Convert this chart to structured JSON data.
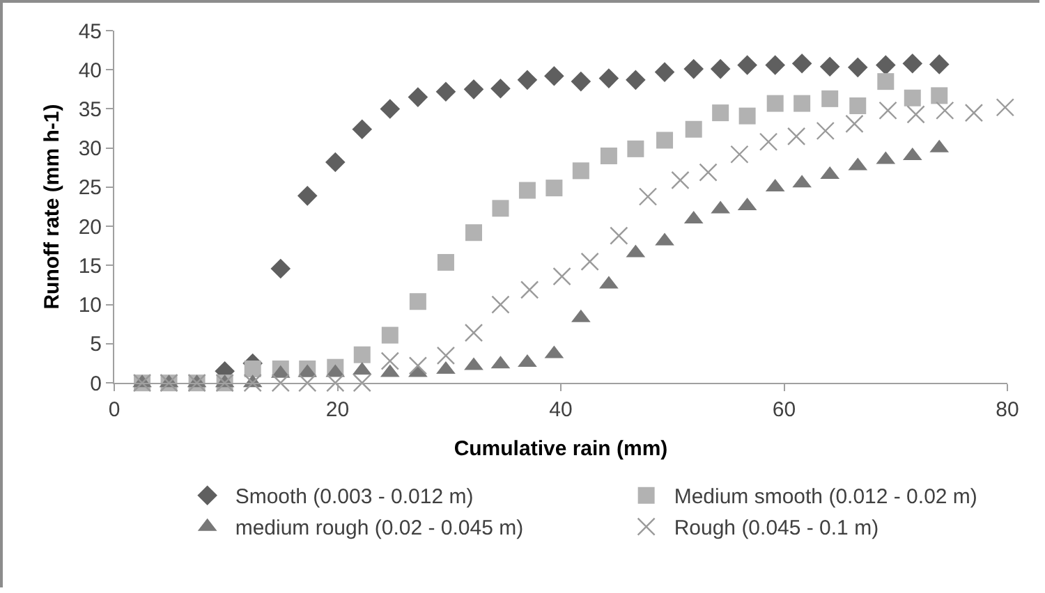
{
  "chart_data": {
    "type": "scatter",
    "xlabel": "Cumulative rain (mm)",
    "ylabel": "Runoff rate (mm h-1)",
    "xlim": [
      0,
      80
    ],
    "xticks": [
      0,
      20,
      40,
      60,
      80
    ],
    "ylim": [
      0,
      45
    ],
    "yticks": [
      0,
      5,
      10,
      15,
      20,
      25,
      30,
      35,
      40,
      45
    ],
    "grid": false,
    "legend": "bottom",
    "x": [
      2.5,
      4.9,
      7.4,
      9.9,
      12.4,
      14.9,
      17.3,
      19.8,
      22.2,
      24.7,
      27.2,
      29.7,
      32.2,
      34.6,
      37.0,
      39.4,
      41.8,
      44.3,
      46.7,
      49.3,
      51.9,
      54.3,
      56.7,
      59.2,
      61.6,
      64.1,
      66.6,
      69.1,
      71.5,
      73.9
    ],
    "series": [
      {
        "name": "Smooth (0.003 - 0.012 m)",
        "color": "#5f5f5f",
        "marker": "diamond",
        "values": [
          null,
          null,
          null,
          1.5,
          2.5,
          14.6,
          23.9,
          28.2,
          32.4,
          35,
          36.5,
          37.2,
          37.5,
          37.6,
          38.7,
          39.2,
          38.5,
          38.9,
          38.7,
          39.7,
          40.1,
          40.1,
          40.6,
          40.6,
          40.8,
          40.4,
          40.3,
          40.6,
          40.8,
          40.7
        ]
      },
      {
        "name": "Medium smooth (0.012 - 0.02 m)",
        "color": "#b2b2b2",
        "marker": "square",
        "values": [
          0,
          0,
          0,
          0,
          1.8,
          1.8,
          1.8,
          2,
          3.6,
          6.1,
          10.4,
          15.4,
          19.2,
          22.3,
          24.6,
          24.9,
          27.1,
          29,
          29.9,
          31,
          32.4,
          34.5,
          34.1,
          35.7,
          35.7,
          36.3,
          35.4,
          38.5,
          36.4,
          36.7
        ]
      },
      {
        "name": "medium rough (0.02 - 0.045 m)",
        "color": "#777777",
        "marker": "triangle",
        "values": [
          0,
          0,
          0,
          0,
          0,
          1.2,
          1.3,
          1.3,
          1.6,
          1.3,
          1.3,
          1.7,
          2.2,
          2.4,
          2.6,
          3.7,
          8.3,
          12.6,
          16.6,
          18.1,
          20.9,
          22.2,
          22.6,
          25,
          25.5,
          26.6,
          27.7,
          28.5,
          29,
          30
        ]
      },
      {
        "name": "Rough (0.045 - 0.1 m)",
        "color": "#9a9a9a",
        "marker": "cross",
        "x": [
          2.5,
          4.9,
          7.4,
          9.9,
          12.4,
          14.9,
          17.3,
          19.8,
          22.2,
          24.7,
          27.2,
          29.7,
          32.2,
          34.6,
          37.2,
          40.1,
          42.6,
          45.2,
          47.8,
          50.7,
          53.2,
          56.0,
          58.6,
          61.1,
          63.7,
          66.3,
          69.3,
          71.8,
          74.4,
          77.0,
          79.8
        ],
        "values": [
          0,
          0,
          0,
          0,
          0,
          0,
          0,
          0,
          0,
          2.8,
          2.2,
          3.5,
          6.4,
          10,
          11.9,
          13.6,
          15.5,
          18.8,
          23.8,
          25.9,
          26.9,
          29.2,
          30.8,
          31.5,
          32.2,
          33.1,
          34.8,
          34.3,
          34.8,
          34.5,
          35.2
        ]
      }
    ]
  }
}
